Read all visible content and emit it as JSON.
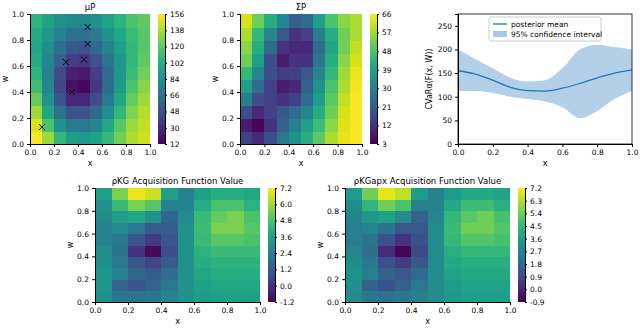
{
  "chart_data": [
    {
      "type": "heatmap",
      "title": "μP",
      "xlabel": "x",
      "ylabel": "w",
      "color": "viridis",
      "xlim": [
        0,
        1
      ],
      "ylim": [
        0,
        1
      ],
      "xticks": [
        {
          "value": 0,
          "label": "0.0"
        },
        {
          "value": 0.2,
          "label": "0.2"
        },
        {
          "value": 0.4,
          "label": "0.4"
        },
        {
          "value": 0.6,
          "label": "0.6"
        },
        {
          "value": 0.8,
          "label": "0.8"
        },
        {
          "value": 1,
          "label": "1.0"
        }
      ],
      "yticks": [
        {
          "value": 0,
          "label": "0.0"
        },
        {
          "value": 0.2,
          "label": "0.2"
        },
        {
          "value": 0.4,
          "label": "0.4"
        },
        {
          "value": 0.6,
          "label": "0.6"
        },
        {
          "value": 0.8,
          "label": "0.8"
        },
        {
          "value": 1,
          "label": "1.0"
        }
      ],
      "x": [
        0.05,
        0.15,
        0.25,
        0.35,
        0.45,
        0.55,
        0.65,
        0.75,
        0.85,
        0.95
      ],
      "y": [
        0.05,
        0.15,
        0.25,
        0.35,
        0.45,
        0.55,
        0.65,
        0.75,
        0.85,
        0.95
      ],
      "z": [
        [
          156,
          135,
          108,
          92,
          90,
          95,
          108,
          125,
          138,
          145
        ],
        [
          148,
          115,
          85,
          70,
          70,
          78,
          98,
          118,
          135,
          142
        ],
        [
          135,
          98,
          65,
          48,
          48,
          60,
          82,
          108,
          128,
          140
        ],
        [
          122,
          85,
          50,
          28,
          28,
          45,
          70,
          98,
          122,
          135
        ],
        [
          112,
          78,
          42,
          18,
          15,
          35,
          62,
          90,
          115,
          130
        ],
        [
          105,
          75,
          45,
          25,
          22,
          38,
          62,
          88,
          110,
          125
        ],
        [
          100,
          78,
          55,
          38,
          35,
          48,
          68,
          88,
          108,
          120
        ],
        [
          98,
          82,
          65,
          52,
          50,
          60,
          75,
          92,
          108,
          118
        ],
        [
          100,
          88,
          75,
          65,
          65,
          72,
          85,
          98,
          110,
          118
        ],
        [
          105,
          95,
          85,
          80,
          80,
          85,
          95,
          105,
          115,
          120
        ]
      ],
      "points": {
        "x": [
          0.1,
          0.3,
          0.35,
          0.45,
          0.48,
          0.48
        ],
        "y": [
          0.13,
          0.63,
          0.4,
          0.65,
          0.77,
          0.9
        ]
      },
      "marker": "x",
      "colorbar": {
        "range": [
          12,
          156
        ],
        "ticks": [
          12,
          30,
          48,
          66,
          84,
          102,
          120,
          138,
          156
        ]
      }
    },
    {
      "type": "heatmap",
      "title": "ΣP",
      "xlabel": "x",
      "ylabel": "w",
      "color": "viridis",
      "xlim": [
        0,
        1
      ],
      "ylim": [
        0,
        1
      ],
      "xticks": [
        {
          "value": 0,
          "label": "0.0"
        },
        {
          "value": 0.2,
          "label": "0.2"
        },
        {
          "value": 0.4,
          "label": "0.4"
        },
        {
          "value": 0.6,
          "label": "0.6"
        },
        {
          "value": 0.8,
          "label": "0.8"
        },
        {
          "value": 1,
          "label": "1.0"
        }
      ],
      "yticks": [
        {
          "value": 0,
          "label": "0.0"
        },
        {
          "value": 0.2,
          "label": "0.2"
        },
        {
          "value": 0.4,
          "label": "0.4"
        },
        {
          "value": 0.6,
          "label": "0.6"
        },
        {
          "value": 0.8,
          "label": "0.8"
        },
        {
          "value": 1,
          "label": "1.0"
        }
      ],
      "x": [
        0.05,
        0.15,
        0.25,
        0.35,
        0.45,
        0.55,
        0.65,
        0.75,
        0.85,
        0.95
      ],
      "y": [
        0.05,
        0.15,
        0.25,
        0.35,
        0.45,
        0.55,
        0.65,
        0.75,
        0.85,
        0.95
      ],
      "z": [
        [
          15,
          10,
          18,
          28,
          35,
          42,
          50,
          58,
          64,
          66
        ],
        [
          8,
          4,
          12,
          22,
          30,
          38,
          46,
          55,
          63,
          66
        ],
        [
          18,
          10,
          15,
          20,
          25,
          32,
          42,
          52,
          62,
          66
        ],
        [
          30,
          18,
          15,
          12,
          15,
          25,
          38,
          50,
          60,
          66
        ],
        [
          38,
          25,
          15,
          8,
          10,
          22,
          35,
          48,
          58,
          65
        ],
        [
          45,
          32,
          18,
          14,
          15,
          20,
          32,
          45,
          57,
          64
        ],
        [
          52,
          38,
          18,
          8,
          12,
          12,
          28,
          42,
          55,
          62
        ],
        [
          55,
          42,
          25,
          12,
          10,
          10,
          25,
          40,
          52,
          60
        ],
        [
          58,
          45,
          32,
          20,
          12,
          15,
          30,
          42,
          52,
          58
        ],
        [
          62,
          52,
          42,
          32,
          22,
          25,
          38,
          48,
          55,
          58
        ]
      ],
      "colorbar": {
        "range": [
          3,
          66
        ],
        "ticks": [
          3,
          12,
          21,
          30,
          39,
          48,
          57,
          66
        ]
      }
    },
    {
      "type": "line",
      "xlabel": "x",
      "ylabel": "CVaRα(F(x, W))",
      "legend": "upper center",
      "xlim": [
        0,
        1
      ],
      "ylim": [
        0,
        275
      ],
      "xticks": [
        {
          "value": 0,
          "label": "0.0"
        },
        {
          "value": 0.2,
          "label": "0.2"
        },
        {
          "value": 0.4,
          "label": "0.4"
        },
        {
          "value": 0.6,
          "label": "0.6"
        },
        {
          "value": 0.8,
          "label": "0.8"
        },
        {
          "value": 1,
          "label": "1.0"
        }
      ],
      "yticks": [
        0,
        50,
        100,
        150,
        200,
        250
      ],
      "x": [
        0,
        0.1,
        0.2,
        0.3,
        0.4,
        0.5,
        0.6,
        0.7,
        0.8,
        0.9,
        1
      ],
      "series": [
        {
          "name": "posterior mean",
          "color": "#1f77b4",
          "values": [
            155,
            148,
            135,
            120,
            113,
            112,
            118,
            128,
            140,
            150,
            157
          ]
        },
        {
          "name": "95% confidence interval",
          "type": "area",
          "color": "#a6c8e4",
          "lower": [
            112,
            112,
            108,
            100,
            95,
            90,
            78,
            55,
            70,
            95,
            112
          ],
          "upper": [
            200,
            180,
            160,
            140,
            132,
            135,
            160,
            200,
            210,
            205,
            200
          ]
        }
      ]
    },
    {
      "type": "heatmap",
      "title": "ρKG Acquisition Function Value",
      "xlabel": "x",
      "ylabel": "w",
      "color": "viridis",
      "xlim": [
        0,
        1
      ],
      "ylim": [
        0,
        1
      ],
      "xticks": [
        {
          "value": 0,
          "label": "0.0"
        },
        {
          "value": 0.2,
          "label": "0.2"
        },
        {
          "value": 0.4,
          "label": "0.4"
        },
        {
          "value": 0.6,
          "label": "0.6"
        },
        {
          "value": 0.8,
          "label": "0.8"
        },
        {
          "value": 1,
          "label": "1.0"
        }
      ],
      "yticks": [
        {
          "value": 0,
          "label": "0.0"
        },
        {
          "value": 0.2,
          "label": "0.2"
        },
        {
          "value": 0.4,
          "label": "0.4"
        },
        {
          "value": 0.6,
          "label": "0.6"
        },
        {
          "value": 0.8,
          "label": "0.8"
        },
        {
          "value": 1,
          "label": "1.0"
        }
      ],
      "x": [
        0.05,
        0.15,
        0.25,
        0.35,
        0.45,
        0.55,
        0.65,
        0.75,
        0.85,
        0.95
      ],
      "y": [
        0.05,
        0.15,
        0.25,
        0.35,
        0.45,
        0.55,
        0.65,
        0.75,
        0.85,
        0.95
      ],
      "z": [
        [
          3.0,
          2.2,
          2.0,
          2.2,
          2.5,
          3.0,
          3.4,
          3.6,
          3.6,
          3.6
        ],
        [
          3.2,
          1.5,
          1.0,
          1.5,
          2.2,
          3.0,
          3.5,
          3.8,
          3.8,
          3.8
        ],
        [
          3.2,
          2.5,
          1.5,
          1.2,
          1.8,
          3.0,
          3.8,
          4.0,
          4.0,
          4.0
        ],
        [
          3.0,
          2.2,
          1.0,
          0.5,
          1.2,
          3.0,
          4.0,
          4.2,
          4.2,
          4.2
        ],
        [
          2.8,
          2.0,
          0.0,
          -1.0,
          0.8,
          3.0,
          4.2,
          4.5,
          4.5,
          4.5
        ],
        [
          2.5,
          2.2,
          1.0,
          0.2,
          1.0,
          3.0,
          4.5,
          5.0,
          5.0,
          4.8
        ],
        [
          2.5,
          2.8,
          2.2,
          1.2,
          1.2,
          3.0,
          4.6,
          5.5,
          5.5,
          5.0
        ],
        [
          2.8,
          3.5,
          3.8,
          3.0,
          1.5,
          2.8,
          4.5,
          5.2,
          5.5,
          4.8
        ],
        [
          3.0,
          4.5,
          5.5,
          5.0,
          2.5,
          2.5,
          4.0,
          4.8,
          4.8,
          4.2
        ],
        [
          3.5,
          5.5,
          7.0,
          6.5,
          3.5,
          2.5,
          3.5,
          4.0,
          4.0,
          3.8
        ]
      ],
      "colorbar": {
        "range": [
          -1.2,
          7.2
        ],
        "ticks": [
          -1.2,
          {
            "value": 0,
            "label": "0.0"
          },
          1.2,
          2.4,
          3.6,
          4.8,
          {
            "value": 6,
            "label": "6.0"
          },
          7.2
        ]
      }
    },
    {
      "type": "heatmap",
      "title": "ρKGapx Acquisition Function Value",
      "xlabel": "x",
      "ylabel": "w",
      "color": "viridis",
      "xlim": [
        0,
        1
      ],
      "ylim": [
        0,
        1
      ],
      "xticks": [
        {
          "value": 0,
          "label": "0.0"
        },
        {
          "value": 0.2,
          "label": "0.2"
        },
        {
          "value": 0.4,
          "label": "0.4"
        },
        {
          "value": 0.6,
          "label": "0.6"
        },
        {
          "value": 0.8,
          "label": "0.8"
        },
        {
          "value": 1,
          "label": "1.0"
        }
      ],
      "yticks": [
        {
          "value": 0,
          "label": "0.0"
        },
        {
          "value": 0.2,
          "label": "0.2"
        },
        {
          "value": 0.4,
          "label": "0.4"
        },
        {
          "value": 0.6,
          "label": "0.6"
        },
        {
          "value": 0.8,
          "label": "0.8"
        },
        {
          "value": 1,
          "label": "1.0"
        }
      ],
      "x": [
        0.05,
        0.15,
        0.25,
        0.35,
        0.45,
        0.55,
        0.65,
        0.75,
        0.85,
        0.95
      ],
      "y": [
        0.05,
        0.15,
        0.25,
        0.35,
        0.45,
        0.55,
        0.65,
        0.75,
        0.85,
        0.95
      ],
      "z": [
        [
          3.0,
          2.3,
          2.1,
          2.3,
          2.6,
          3.0,
          3.4,
          3.6,
          3.6,
          3.6
        ],
        [
          3.1,
          1.6,
          1.1,
          1.6,
          2.3,
          3.0,
          3.5,
          3.8,
          3.8,
          3.8
        ],
        [
          3.2,
          2.5,
          1.6,
          1.3,
          1.9,
          3.0,
          3.8,
          4.0,
          4.0,
          4.0
        ],
        [
          3.0,
          2.3,
          1.1,
          0.5,
          1.3,
          3.0,
          4.0,
          4.2,
          4.2,
          4.2
        ],
        [
          2.8,
          2.0,
          0.1,
          -0.8,
          0.9,
          3.0,
          4.2,
          4.5,
          4.5,
          4.5
        ],
        [
          2.5,
          2.2,
          1.1,
          0.3,
          1.1,
          3.0,
          4.5,
          5.0,
          5.0,
          4.8
        ],
        [
          2.5,
          2.8,
          2.2,
          1.3,
          1.3,
          3.0,
          4.6,
          5.4,
          5.4,
          5.0
        ],
        [
          2.8,
          3.4,
          3.7,
          3.0,
          1.6,
          2.8,
          4.5,
          5.1,
          5.4,
          4.8
        ],
        [
          3.0,
          4.4,
          5.4,
          4.9,
          2.6,
          2.6,
          4.0,
          4.7,
          4.7,
          4.2
        ],
        [
          3.5,
          5.4,
          6.9,
          6.4,
          3.5,
          2.6,
          3.5,
          4.0,
          4.0,
          3.8
        ]
      ],
      "colorbar": {
        "range": [
          -0.9,
          7.2
        ],
        "ticks": [
          -0.9,
          {
            "value": 0,
            "label": "0.0"
          },
          0.9,
          1.8,
          2.7,
          3.6,
          4.5,
          5.4,
          6.3,
          7.2
        ]
      }
    }
  ]
}
